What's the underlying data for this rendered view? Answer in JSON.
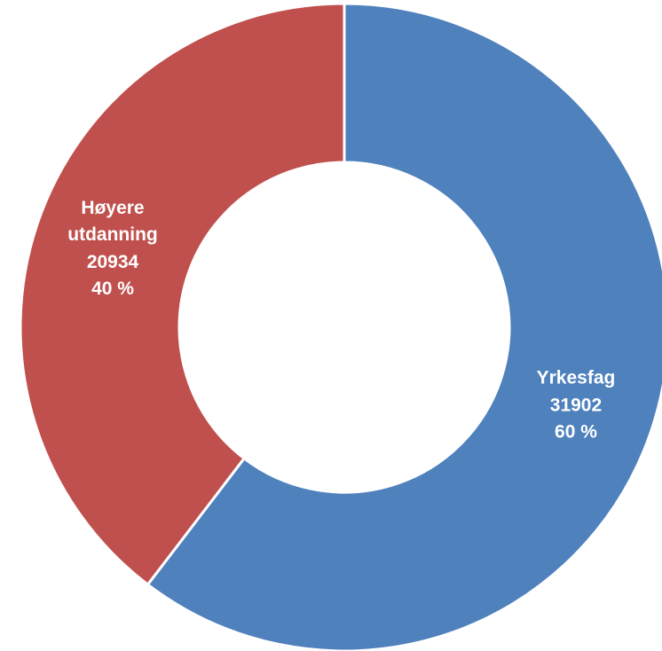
{
  "chart_data": {
    "type": "donut",
    "categories": [
      "Yrkesfag",
      "Høyere utdanning"
    ],
    "values": [
      31902,
      20934
    ],
    "percentages": [
      60,
      40
    ],
    "percentage_labels": [
      "60 %",
      "40 %"
    ],
    "colors": [
      "#4f81bd",
      "#c0504d"
    ]
  }
}
